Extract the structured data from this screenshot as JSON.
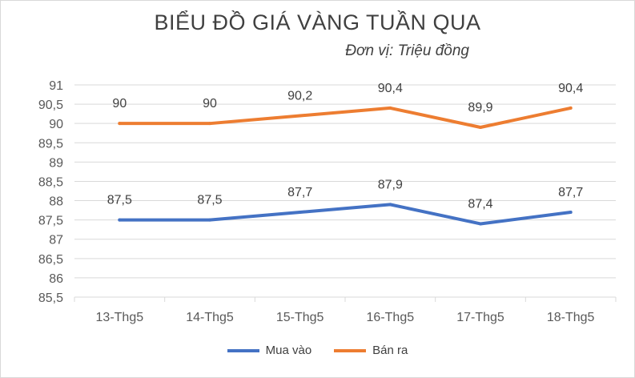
{
  "chart_data": {
    "type": "line",
    "title": "BIỂU ĐỒ GIÁ VÀNG TUẦN QUA",
    "subtitle": "Đơn vị: Triệu đồng",
    "xlabel": "",
    "ylabel": "",
    "categories": [
      "13-Thg5",
      "14-Thg5",
      "15-Thg5",
      "16-Thg5",
      "17-Thg5",
      "18-Thg5"
    ],
    "ylim": [
      85.5,
      91
    ],
    "ytick_step": 0.5,
    "ytick_labels": [
      "85,5",
      "86",
      "86,5",
      "87",
      "87,5",
      "88",
      "88,5",
      "89",
      "89,5",
      "90",
      "90,5",
      "91"
    ],
    "grid": true,
    "legend_position": "bottom",
    "series": [
      {
        "name": "Mua vào",
        "color": "#4472C4",
        "values": [
          87.5,
          87.5,
          87.7,
          87.9,
          87.4,
          87.7
        ],
        "labels": [
          "87,5",
          "87,5",
          "87,7",
          "87,9",
          "87,4",
          "87,7"
        ]
      },
      {
        "name": "Bán ra",
        "color": "#ED7D31",
        "values": [
          90,
          90,
          90.2,
          90.4,
          89.9,
          90.4
        ],
        "labels": [
          "90",
          "90",
          "90,2",
          "90,4",
          "89,9",
          "90,4"
        ]
      }
    ]
  }
}
